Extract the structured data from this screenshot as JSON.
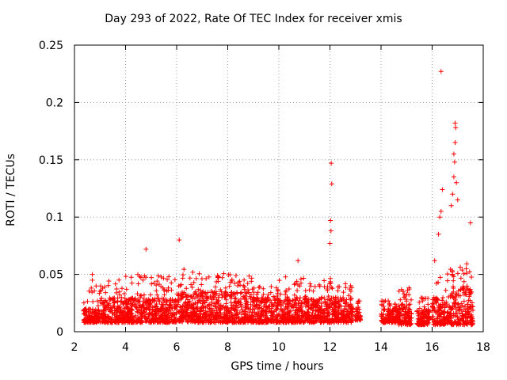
{
  "chart_data": {
    "type": "scatter",
    "title": "Day 293 of 2022, Rate Of TEC Index for receiver xmis",
    "xlabel": "GPS time / hours",
    "ylabel": "ROTI / TECUs",
    "xlim": [
      2,
      18
    ],
    "ylim": [
      0,
      0.25
    ],
    "x_ticks": [
      "2",
      "4",
      "6",
      "8",
      "10",
      "12",
      "14",
      "16",
      "18"
    ],
    "y_ticks": [
      "0",
      "0.05",
      "0.1",
      "0.15",
      "0.2",
      "0.25"
    ],
    "grid": true,
    "marker": "+",
    "series_color": "#ff0000",
    "clusters": [
      {
        "x": [
          2.35,
          3.0
        ],
        "base": [
          0.008,
          0.02
        ],
        "peak": 0.05
      },
      {
        "x": [
          3.0,
          4.0
        ],
        "base": [
          0.008,
          0.03
        ],
        "peak": 0.046
      },
      {
        "x": [
          4.0,
          5.0
        ],
        "base": [
          0.008,
          0.03
        ],
        "peak": 0.072
      },
      {
        "x": [
          5.0,
          6.0
        ],
        "base": [
          0.008,
          0.03
        ],
        "peak": 0.05
      },
      {
        "x": [
          6.0,
          7.0
        ],
        "base": [
          0.008,
          0.035
        ],
        "peak": 0.08
      },
      {
        "x": [
          7.0,
          8.0
        ],
        "base": [
          0.008,
          0.035
        ],
        "peak": 0.052
      },
      {
        "x": [
          8.0,
          9.0
        ],
        "base": [
          0.008,
          0.035
        ],
        "peak": 0.05
      },
      {
        "x": [
          9.0,
          10.0
        ],
        "base": [
          0.008,
          0.03
        ],
        "peak": 0.04
      },
      {
        "x": [
          10.0,
          11.0
        ],
        "base": [
          0.008,
          0.03
        ],
        "peak": 0.062
      },
      {
        "x": [
          11.0,
          11.8
        ],
        "base": [
          0.008,
          0.03
        ],
        "peak": 0.045
      },
      {
        "x": [
          11.8,
          12.2
        ],
        "base": [
          0.008,
          0.03
        ],
        "peak": 0.147
      },
      {
        "x": [
          12.2,
          12.9
        ],
        "base": [
          0.008,
          0.03
        ],
        "peak": 0.042
      },
      {
        "x": [
          13.0,
          13.2
        ],
        "base": [
          0.01,
          0.02
        ],
        "peak": 0.028
      },
      {
        "x": [
          14.0,
          14.7
        ],
        "base": [
          0.008,
          0.02
        ],
        "peak": 0.027
      },
      {
        "x": [
          14.7,
          15.2
        ],
        "base": [
          0.006,
          0.025
        ],
        "peak": 0.04
      },
      {
        "x": [
          15.4,
          15.9
        ],
        "base": [
          0.006,
          0.02
        ],
        "peak": 0.03
      },
      {
        "x": [
          16.0,
          16.6
        ],
        "base": [
          0.006,
          0.03
        ],
        "peak": 0.227
      },
      {
        "x": [
          16.6,
          17.1
        ],
        "base": [
          0.006,
          0.035
        ],
        "peak": 0.182
      },
      {
        "x": [
          17.1,
          17.6
        ],
        "base": [
          0.006,
          0.04
        ],
        "peak": 0.095
      }
    ],
    "notable_points": [
      {
        "x": 2.7,
        "y": 0.05
      },
      {
        "x": 2.7,
        "y": 0.045
      },
      {
        "x": 4.8,
        "y": 0.072
      },
      {
        "x": 6.1,
        "y": 0.08
      },
      {
        "x": 10.75,
        "y": 0.062
      },
      {
        "x": 12.05,
        "y": 0.147
      },
      {
        "x": 12.07,
        "y": 0.129
      },
      {
        "x": 12.02,
        "y": 0.097
      },
      {
        "x": 12.04,
        "y": 0.088
      },
      {
        "x": 12.0,
        "y": 0.077
      },
      {
        "x": 16.35,
        "y": 0.227
      },
      {
        "x": 16.4,
        "y": 0.124
      },
      {
        "x": 16.35,
        "y": 0.105
      },
      {
        "x": 16.3,
        "y": 0.1
      },
      {
        "x": 16.25,
        "y": 0.085
      },
      {
        "x": 16.9,
        "y": 0.182
      },
      {
        "x": 16.92,
        "y": 0.178
      },
      {
        "x": 16.9,
        "y": 0.165
      },
      {
        "x": 16.85,
        "y": 0.155
      },
      {
        "x": 16.88,
        "y": 0.148
      },
      {
        "x": 16.85,
        "y": 0.135
      },
      {
        "x": 16.95,
        "y": 0.13
      },
      {
        "x": 16.8,
        "y": 0.12
      },
      {
        "x": 17.0,
        "y": 0.115
      },
      {
        "x": 16.75,
        "y": 0.11
      },
      {
        "x": 17.5,
        "y": 0.095
      },
      {
        "x": 16.1,
        "y": 0.062
      }
    ]
  }
}
